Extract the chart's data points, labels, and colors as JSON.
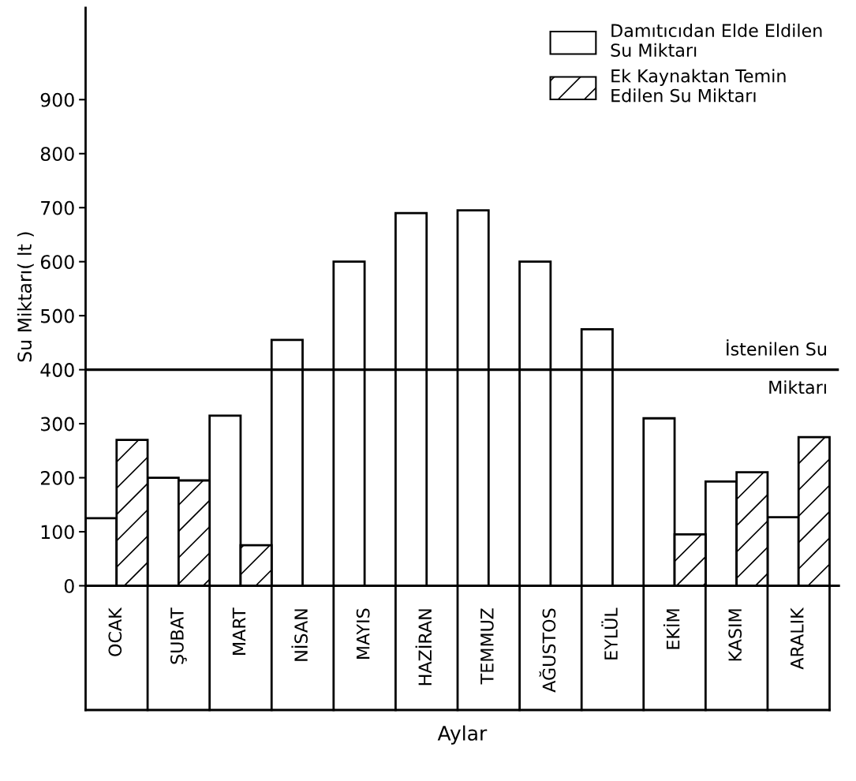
{
  "chart_data": {
    "type": "bar",
    "xlabel": "Aylar",
    "ylabel": "Su Miktarı( lt )",
    "categories": [
      "OCAK",
      "ŞUBAT",
      "MART",
      "NİSAN",
      "MAYIS",
      "HAZİRAN",
      "TEMMUZ",
      "AĞUSTOS",
      "EYLÜL",
      "EKİM",
      "KASIM",
      "ARALIK"
    ],
    "series": [
      {
        "name": "Damıtıcıdan Elde Eldilen Su Miktarı",
        "color": "#ffffff",
        "values": [
          125,
          200,
          315,
          455,
          600,
          690,
          695,
          600,
          475,
          310,
          193,
          127
        ]
      },
      {
        "name": "Ek Kaynaktan Temin Edilen Su Miktarı",
        "color": "#000000",
        "values": [
          270,
          195,
          75,
          null,
          null,
          null,
          null,
          null,
          null,
          95,
          210,
          275
        ]
      }
    ],
    "ylim": [
      0,
      1070
    ],
    "yticks": [
      0,
      100,
      200,
      300,
      400,
      500,
      600,
      700,
      800,
      900
    ],
    "ref_lines": [
      {
        "axis": "y",
        "value": 400,
        "label": "İstenilen Su\nMiktarı",
        "color": "#000000",
        "line_style": "solid"
      }
    ],
    "legend": "top right",
    "grid": false
  }
}
